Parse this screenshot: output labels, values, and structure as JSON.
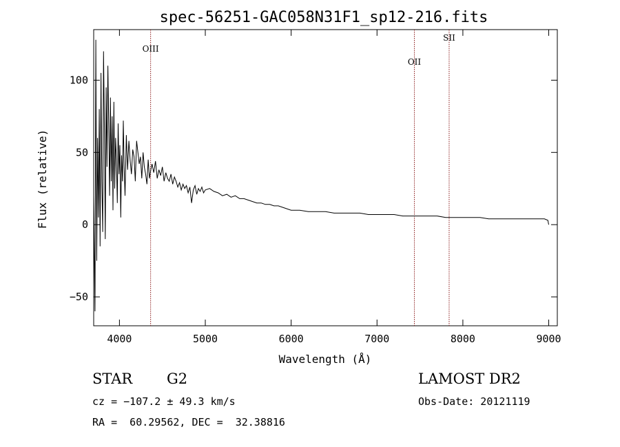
{
  "chart_data": {
    "type": "line",
    "title": "spec-56251-GAC058N31F1_sp12-216.fits",
    "xlabel": "Wavelength (Å)",
    "ylabel": "Flux (relative)",
    "xlim": [
      3700,
      9100
    ],
    "ylim": [
      -70,
      135
    ],
    "xticks": [
      4000,
      5000,
      6000,
      7000,
      8000,
      9000
    ],
    "xtick_labels": [
      "4000",
      "5000",
      "6000",
      "7000",
      "8000",
      "9000"
    ],
    "yticks": [
      -50,
      0,
      50,
      100
    ],
    "ytick_labels": [
      "−50",
      "0",
      "50",
      "100"
    ],
    "line_color": "#000000",
    "marker_color": "#8b1a1a",
    "lines": [
      {
        "label": "OIII",
        "wavelength": 4363
      },
      {
        "label": "OII",
        "wavelength": 7435
      },
      {
        "label": "SII",
        "wavelength": 7840
      }
    ],
    "series": [
      {
        "x": [
          3700,
          3715,
          3725,
          3735,
          3745,
          3755,
          3765,
          3775,
          3785,
          3795,
          3805,
          3815,
          3825,
          3835,
          3845,
          3855,
          3865,
          3875,
          3885,
          3895,
          3905,
          3915,
          3925,
          3935,
          3945,
          3955,
          3965,
          3975,
          3985,
          3995,
          4005,
          4015,
          4025,
          4035,
          4045,
          4055,
          4065,
          4080,
          4095,
          4110,
          4125,
          4140,
          4155,
          4170,
          4185,
          4200,
          4215,
          4230,
          4245,
          4260,
          4275,
          4290,
          4305,
          4320,
          4335,
          4350,
          4365,
          4380,
          4400,
          4420,
          4440,
          4460,
          4480,
          4500,
          4520,
          4540,
          4560,
          4580,
          4600,
          4620,
          4640,
          4660,
          4680,
          4700,
          4720,
          4740,
          4760,
          4780,
          4800,
          4820,
          4840,
          4860,
          4880,
          4900,
          4920,
          4940,
          4960,
          4980,
          5000,
          5050,
          5100,
          5150,
          5200,
          5250,
          5300,
          5350,
          5400,
          5450,
          5500,
          5550,
          5600,
          5650,
          5700,
          5750,
          5800,
          5850,
          5900,
          5950,
          6000,
          6100,
          6200,
          6300,
          6400,
          6500,
          6600,
          6700,
          6800,
          6900,
          7000,
          7100,
          7200,
          7300,
          7400,
          7500,
          7600,
          7700,
          7800,
          7900,
          8000,
          8100,
          8200,
          8300,
          8400,
          8500,
          8600,
          8700,
          8800,
          8900,
          8950,
          8990,
          9000
        ],
        "y": [
          20,
          -60,
          128,
          -25,
          60,
          5,
          80,
          -15,
          105,
          30,
          -5,
          120,
          65,
          -10,
          95,
          40,
          110,
          70,
          20,
          88,
          30,
          75,
          10,
          85,
          25,
          60,
          45,
          15,
          70,
          35,
          55,
          5,
          48,
          30,
          72,
          40,
          20,
          62,
          38,
          58,
          44,
          35,
          52,
          47,
          30,
          58,
          50,
          42,
          47,
          32,
          50,
          40,
          35,
          28,
          45,
          32,
          38,
          42,
          36,
          44,
          32,
          38,
          34,
          40,
          30,
          36,
          32,
          30,
          35,
          28,
          33,
          30,
          26,
          29,
          24,
          28,
          25,
          27,
          22,
          26,
          15,
          24,
          27,
          21,
          25,
          23,
          26,
          22,
          24,
          25,
          23,
          22,
          20,
          21,
          19,
          20,
          18,
          18,
          17,
          16,
          15,
          15,
          14,
          14,
          13,
          13,
          12,
          11,
          10,
          10,
          9,
          9,
          9,
          8,
          8,
          8,
          8,
          7,
          7,
          7,
          7,
          6,
          6,
          6,
          6,
          6,
          5,
          5,
          5,
          5,
          5,
          4,
          4,
          4,
          4,
          4,
          4,
          4,
          4,
          3,
          0
        ]
      }
    ]
  },
  "footer": {
    "object_class": "STAR",
    "subclass": "G2",
    "survey": "LAMOST DR2",
    "cz": "cz = −107.2 ± 49.3 km/s",
    "obs_date": "Obs-Date: 20121119",
    "coords": "RA =  60.29562, DEC =  32.38816"
  }
}
